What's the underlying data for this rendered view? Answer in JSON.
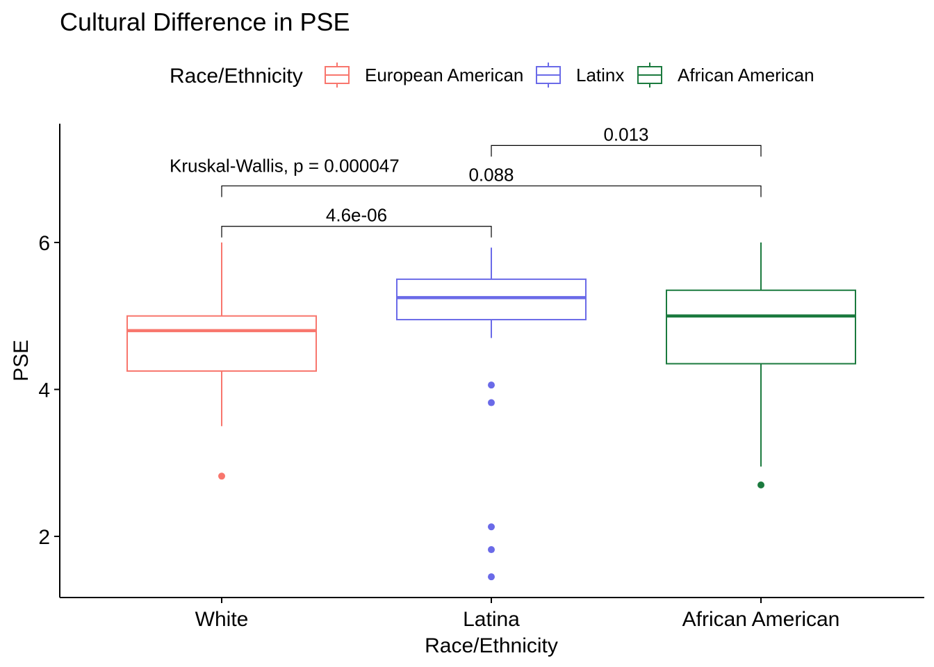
{
  "chart_data": {
    "type": "box",
    "title": "Cultural Difference in PSE",
    "xlabel": "Race/Ethnicity",
    "ylabel": "PSE",
    "ylim": [
      1.2,
      7.65
    ],
    "yticks": [
      2,
      4,
      6
    ],
    "grid": false,
    "legend": {
      "title": "Race/Ethnicity",
      "position": "top",
      "entries": [
        "European American",
        "Latinx",
        "African American"
      ]
    },
    "categories": [
      "White",
      "Latina",
      "African American"
    ],
    "series": [
      {
        "name": "European American",
        "category": "White",
        "color": "#F8766D",
        "q1": 4.25,
        "median": 4.8,
        "q3": 5.0,
        "whisker_low": 3.5,
        "whisker_high": 6.0,
        "outliers": [
          2.82
        ]
      },
      {
        "name": "Latinx",
        "category": "Latina",
        "color": "#6A6AE8",
        "q1": 4.95,
        "median": 5.25,
        "q3": 5.5,
        "whisker_low": 4.7,
        "whisker_high": 5.93,
        "outliers": [
          4.06,
          3.82,
          2.13,
          1.82,
          1.45
        ]
      },
      {
        "name": "African American",
        "category": "African American",
        "color": "#1B7A3E",
        "q1": 4.35,
        "median": 5.0,
        "q3": 5.35,
        "whisker_low": 2.95,
        "whisker_high": 6.0,
        "outliers": [
          2.7
        ]
      }
    ],
    "global_test": {
      "label": "Kruskal-Wallis, p = 0.000047",
      "x_category": "Latina",
      "y": 7.0
    },
    "comparisons": [
      {
        "from": "White",
        "to": "Latina",
        "label": "4.6e-06",
        "y": 6.22
      },
      {
        "from": "White",
        "to": "African American",
        "label": "0.088",
        "y": 6.77
      },
      {
        "from": "Latina",
        "to": "African American",
        "label": "0.013",
        "y": 7.32
      }
    ]
  }
}
